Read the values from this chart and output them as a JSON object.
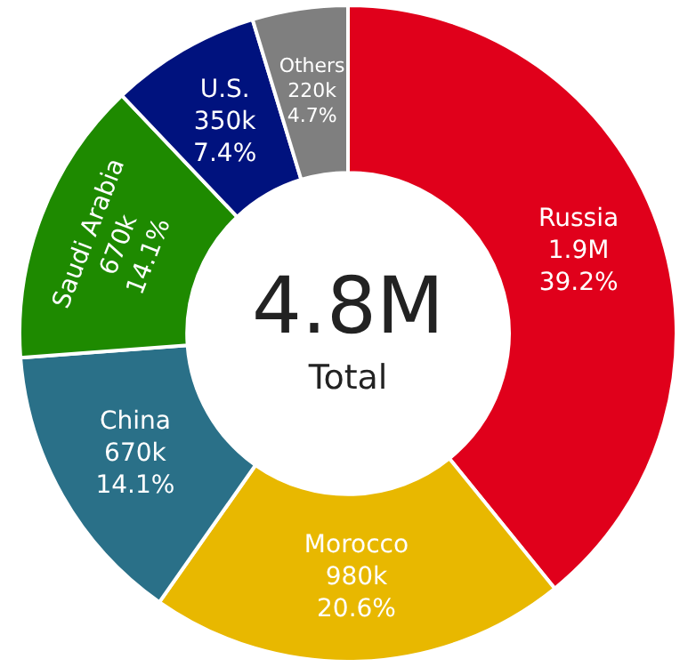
{
  "chart_data": {
    "type": "donut",
    "categories": [
      "Russia",
      "Morocco",
      "China",
      "Saudi Arabia",
      "U.S.",
      "Others"
    ],
    "values": [
      39.2,
      20.6,
      14.1,
      14.1,
      7.4,
      4.7
    ],
    "colors": [
      "#e0001b",
      "#e8b800",
      "#2a7088",
      "#1e8a00",
      "#00127e",
      "#7f7f7f"
    ],
    "value_labels": [
      "1.9M\n39.2%",
      "980k\n20.6%",
      "670k\n14.1%",
      "670k\n14.1%",
      "350k\n7.4%",
      "220k\n4.7%"
    ],
    "annotations": [
      "4.8M",
      "Total"
    ],
    "legend": false
  }
}
